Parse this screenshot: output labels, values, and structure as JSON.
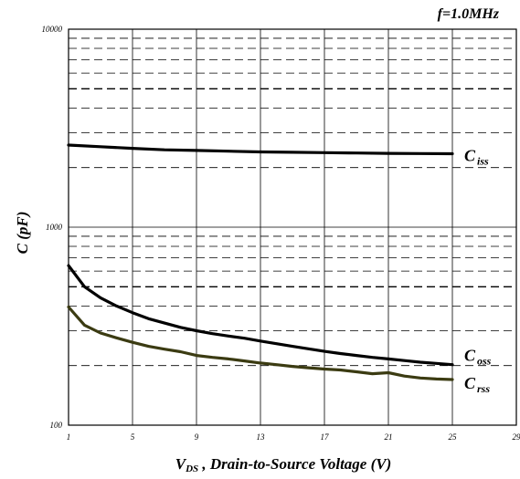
{
  "chart_data": {
    "type": "line",
    "title": "f=1.0MHz",
    "xlabel": {
      "main": "V",
      "sub": "DS",
      "rest": " , Drain-to-Source Voltage (V)"
    },
    "ylabel": "C (pF)",
    "xlim": [
      1,
      29
    ],
    "ylim": [
      100,
      10000
    ],
    "yscale": "log",
    "grid": true,
    "x_ticks": [
      1,
      5,
      9,
      13,
      17,
      21,
      25,
      29
    ],
    "y_tick_labels": [
      100,
      1000,
      10000
    ],
    "series": [
      {
        "name_main": "C",
        "name_sub": "iss",
        "color": "#000000",
        "x": [
          1,
          3,
          5,
          7,
          9,
          11,
          13,
          15,
          17,
          19,
          21,
          23,
          25
        ],
        "y": [
          2600,
          2550,
          2500,
          2460,
          2440,
          2420,
          2400,
          2390,
          2380,
          2370,
          2360,
          2355,
          2350
        ]
      },
      {
        "name_main": "C",
        "name_sub": "oss",
        "color": "#000000",
        "x": [
          1,
          2,
          3,
          4,
          5,
          6,
          7,
          8,
          9,
          10,
          11,
          12,
          13,
          14,
          15,
          16,
          17,
          18,
          19,
          20,
          21,
          22,
          23,
          24,
          25
        ],
        "y": [
          640,
          500,
          440,
          400,
          370,
          345,
          328,
          312,
          300,
          290,
          282,
          275,
          266,
          258,
          250,
          243,
          236,
          230,
          225,
          220,
          216,
          212,
          208,
          205,
          202
        ]
      },
      {
        "name_main": "C",
        "name_sub": "rss",
        "color": "#3b3b12",
        "x": [
          1,
          2,
          3,
          4,
          5,
          6,
          7,
          8,
          9,
          10,
          11,
          12,
          13,
          14,
          15,
          16,
          17,
          18,
          19,
          20,
          21,
          22,
          23,
          24,
          25
        ],
        "y": [
          395,
          320,
          292,
          276,
          262,
          250,
          242,
          235,
          225,
          220,
          216,
          211,
          206,
          202,
          198,
          195,
          192,
          190,
          186,
          182,
          184,
          177,
          173,
          171,
          170
        ]
      }
    ]
  }
}
